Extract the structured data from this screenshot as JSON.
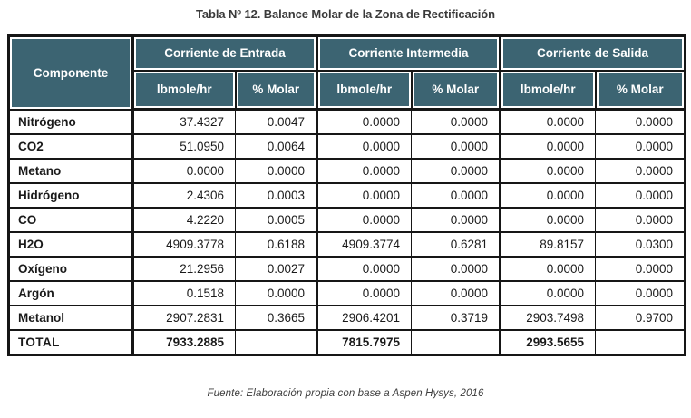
{
  "page": {
    "title": "Tabla Nº 12. Balance Molar de la Zona de Rectificación",
    "source_note": "Fuente: Elaboración propia con base a Aspen Hysys, 2016"
  },
  "colors": {
    "header_bg": "#3C6472",
    "header_text": "#FFFFFF",
    "grid": "#161616"
  },
  "table": {
    "component_header": "Componente",
    "groups": [
      {
        "label": "Corriente de Entrada",
        "sub": [
          "lbmole/hr",
          "% Molar"
        ]
      },
      {
        "label": "Corriente Intermedia",
        "sub": [
          "lbmole/hr",
          "% Molar"
        ]
      },
      {
        "label": "Corriente de Salida",
        "sub": [
          "lbmole/hr",
          "% Molar"
        ]
      }
    ],
    "rows": [
      {
        "component": "Nitrógeno",
        "values": [
          "37.4327",
          "0.0047",
          "0.0000",
          "0.0000",
          "0.0000",
          "0.0000"
        ]
      },
      {
        "component": "CO2",
        "values": [
          "51.0950",
          "0.0064",
          "0.0000",
          "0.0000",
          "0.0000",
          "0.0000"
        ]
      },
      {
        "component": "Metano",
        "values": [
          "0.0000",
          "0.0000",
          "0.0000",
          "0.0000",
          "0.0000",
          "0.0000"
        ]
      },
      {
        "component": "Hidrógeno",
        "values": [
          "2.4306",
          "0.0003",
          "0.0000",
          "0.0000",
          "0.0000",
          "0.0000"
        ]
      },
      {
        "component": "CO",
        "values": [
          "4.2220",
          "0.0005",
          "0.0000",
          "0.0000",
          "0.0000",
          "0.0000"
        ]
      },
      {
        "component": "H2O",
        "values": [
          "4909.3778",
          "0.6188",
          "4909.3774",
          "0.6281",
          "89.8157",
          "0.0300"
        ]
      },
      {
        "component": "Oxígeno",
        "values": [
          "21.2956",
          "0.0027",
          "0.0000",
          "0.0000",
          "0.0000",
          "0.0000"
        ]
      },
      {
        "component": "Argón",
        "values": [
          "0.1518",
          "0.0000",
          "0.0000",
          "0.0000",
          "0.0000",
          "0.0000"
        ]
      },
      {
        "component": "Metanol",
        "values": [
          "2907.2831",
          "0.3665",
          "2906.4201",
          "0.3719",
          "2903.7498",
          "0.9700"
        ]
      }
    ],
    "total_row": {
      "component": "TOTAL",
      "values": [
        "7933.2885",
        "",
        "7815.7975",
        "",
        "2993.5655",
        ""
      ]
    }
  }
}
